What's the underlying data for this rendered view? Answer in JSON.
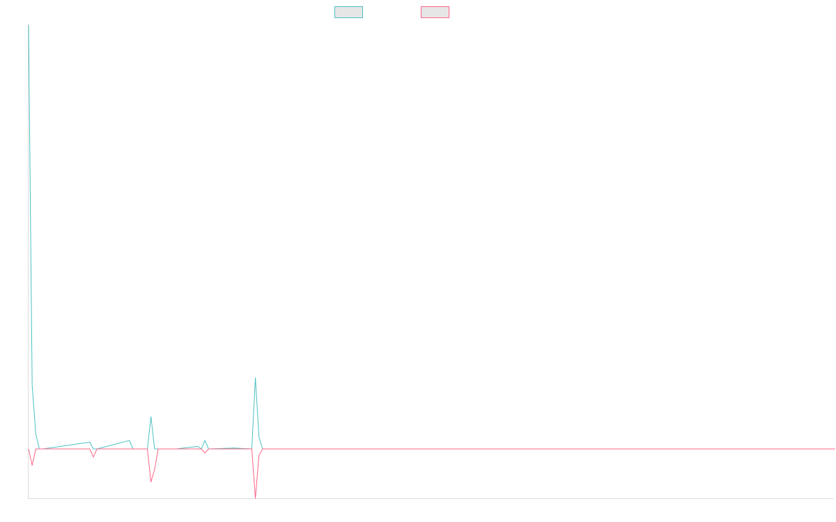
{
  "chart_data": {
    "type": "line",
    "title": "",
    "xlabel": "",
    "ylabel": "",
    "grid": false,
    "legend_placement": "top-center",
    "ylim": [
      -60,
      500
    ],
    "x": [
      0,
      1,
      2,
      3,
      4,
      17,
      18,
      19,
      28,
      29,
      33,
      34,
      35,
      36,
      38,
      40,
      41,
      47,
      48,
      49,
      50,
      57,
      62,
      63,
      64,
      65,
      66,
      67,
      224
    ],
    "series": [
      {
        "color": "#4bc0c0",
        "values": [
          500,
          75,
          18,
          0,
          0,
          8,
          0,
          0,
          10,
          0,
          0,
          38,
          0,
          0,
          0,
          0,
          0,
          3,
          0,
          10,
          0,
          1,
          0,
          84,
          14,
          0,
          0,
          0,
          0
        ]
      },
      {
        "color": "#ff6384",
        "values": [
          0,
          -20,
          0,
          0,
          0,
          0,
          -10,
          0,
          0,
          0,
          0,
          -40,
          -25,
          0,
          0,
          0,
          0,
          0,
          0,
          -5,
          0,
          0,
          0,
          -60,
          -8,
          0,
          0,
          0,
          0
        ]
      }
    ]
  }
}
